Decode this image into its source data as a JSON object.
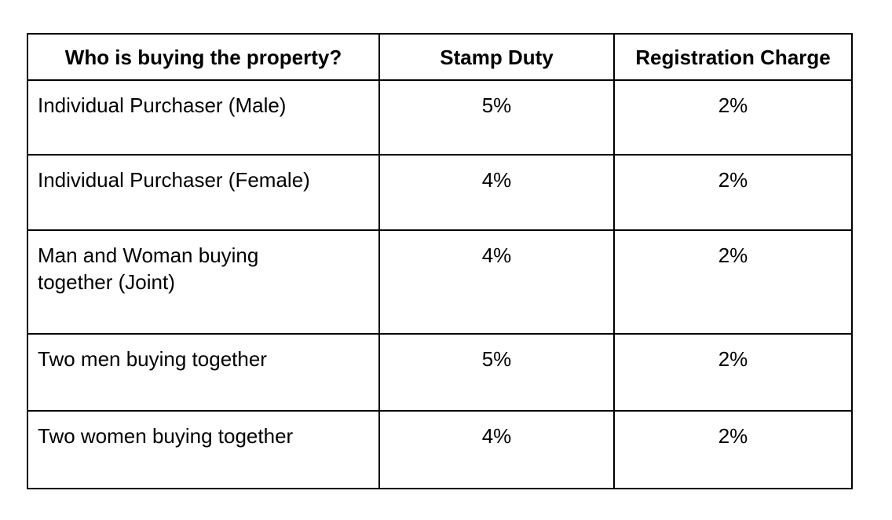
{
  "table": {
    "headers": [
      "Who is buying the property?",
      "Stamp Duty",
      "Registration Charge"
    ],
    "rows": [
      [
        "Individual Purchaser (Male)",
        "5%",
        "2%"
      ],
      [
        "Individual Purchaser (Female)",
        "4%",
        "2%"
      ],
      [
        "Man and Woman buying together (Joint)",
        "4%",
        "2%"
      ],
      [
        "Two men buying together",
        "5%",
        "2%"
      ],
      [
        "Two women buying together",
        "4%",
        "2%"
      ]
    ]
  }
}
